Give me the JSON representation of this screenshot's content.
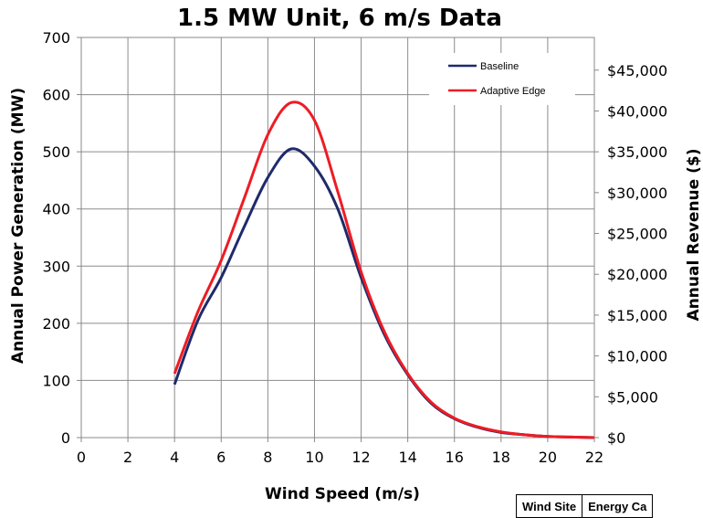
{
  "chart_data": {
    "type": "line",
    "title": "1.5 MW Unit, 6 m/s Data",
    "xlabel": "Wind Speed (m/s)",
    "ylabel": "Annual Power Generation (MW)",
    "y2label": "Annual Revenue ($)",
    "xlim": [
      0,
      22
    ],
    "ylim": [
      0,
      700
    ],
    "y2lim": [
      0,
      49000
    ],
    "x_ticks": [
      "0",
      "2",
      "4",
      "6",
      "8",
      "10",
      "12",
      "14",
      "16",
      "18",
      "20",
      "22"
    ],
    "y_ticks": [
      "0",
      "100",
      "200",
      "300",
      "400",
      "500",
      "600",
      "700"
    ],
    "y2_ticks": [
      "$0",
      "$5,000",
      "$10,000",
      "$15,000",
      "$20,000",
      "$25,000",
      "$30,000",
      "$35,000",
      "$40,000",
      "$45,000"
    ],
    "grid": true,
    "legend_position": "top-right",
    "series": [
      {
        "name": "Baseline",
        "color": "#1f2a6b",
        "x": [
          4,
          5,
          6,
          7,
          8,
          9,
          10,
          11,
          12,
          13,
          14,
          15,
          16,
          17,
          18,
          19,
          20,
          21,
          22
        ],
        "y": [
          93,
          205,
          280,
          370,
          455,
          505,
          475,
          400,
          280,
          180,
          110,
          60,
          33,
          18,
          9,
          5,
          2,
          1,
          0
        ]
      },
      {
        "name": "Adaptive Edge",
        "color": "#ee1c24",
        "x": [
          4,
          5,
          6,
          7,
          8,
          9,
          10,
          11,
          12,
          13,
          14,
          15,
          16,
          17,
          18,
          19,
          20,
          21,
          22
        ],
        "y": [
          112,
          220,
          310,
          420,
          530,
          586,
          555,
          430,
          290,
          185,
          112,
          62,
          34,
          19,
          10,
          5,
          2,
          1,
          0
        ]
      }
    ]
  },
  "table_fragment": {
    "headers": [
      "Wind Site",
      "Energy Ca"
    ]
  }
}
